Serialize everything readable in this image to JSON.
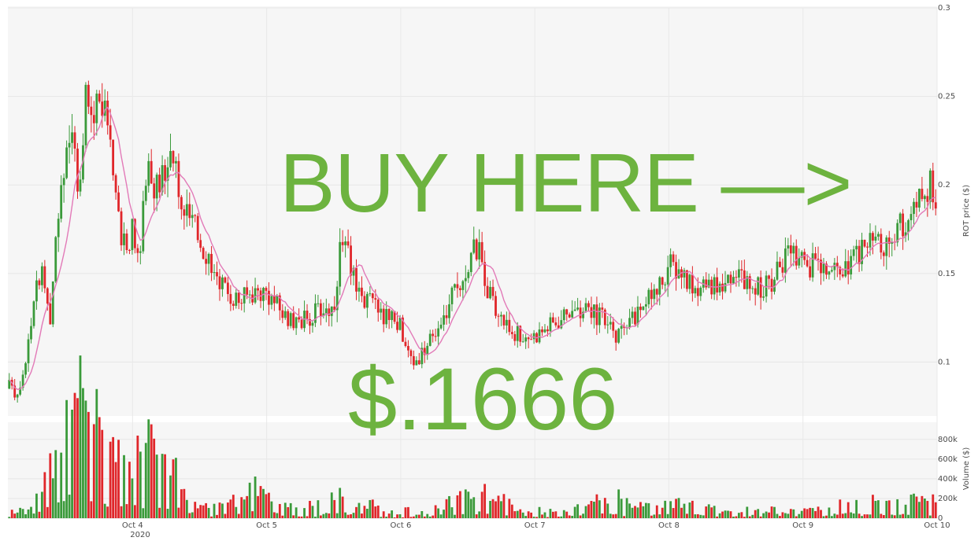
{
  "chart_data": [
    {
      "type": "candlestick",
      "ylabel": "ROT price ($)",
      "ylim": [
        0.07,
        0.3
      ],
      "y_ticks": [
        "0.1",
        "0.15",
        "0.2",
        "0.25",
        "0.3"
      ],
      "x_ticks": [
        "Oct 4",
        "Oct 5",
        "Oct 6",
        "Oct 7",
        "Oct 8",
        "Oct 9",
        "Oct 10"
      ],
      "x_year": "2020",
      "x_range": [
        3.07,
        10.0
      ],
      "grid": true,
      "colors": {
        "up": "#3a9a3a",
        "down": "#e0262a",
        "ma": "#e27ab8",
        "panel": "#f6f6f6"
      },
      "series": [
        {
          "close_path": [
            [
              3.07,
              0.085
            ],
            [
              3.1,
              0.09
            ],
            [
              3.13,
              0.08
            ],
            [
              3.18,
              0.095
            ],
            [
              3.22,
              0.11
            ],
            [
              3.28,
              0.14
            ],
            [
              3.32,
              0.15
            ],
            [
              3.38,
              0.12
            ],
            [
              3.43,
              0.17
            ],
            [
              3.5,
              0.22
            ],
            [
              3.55,
              0.23
            ],
            [
              3.6,
              0.2
            ],
            [
              3.65,
              0.25
            ],
            [
              3.7,
              0.24
            ],
            [
              3.75,
              0.26
            ],
            [
              3.8,
              0.235
            ],
            [
              3.85,
              0.215
            ],
            [
              3.9,
              0.18
            ],
            [
              3.95,
              0.16
            ],
            [
              4.0,
              0.175
            ],
            [
              4.05,
              0.155
            ],
            [
              4.1,
              0.21
            ],
            [
              4.15,
              0.195
            ],
            [
              4.2,
              0.205
            ],
            [
              4.25,
              0.2
            ],
            [
              4.3,
              0.215
            ],
            [
              4.35,
              0.195
            ],
            [
              4.4,
              0.185
            ],
            [
              4.5,
              0.17
            ],
            [
              4.6,
              0.155
            ],
            [
              4.7,
              0.14
            ],
            [
              4.8,
              0.135
            ],
            [
              4.9,
              0.14
            ],
            [
              5.0,
              0.14
            ],
            [
              5.1,
              0.13
            ],
            [
              5.2,
              0.12
            ],
            [
              5.3,
              0.125
            ],
            [
              5.4,
              0.13
            ],
            [
              5.5,
              0.13
            ],
            [
              5.55,
              0.165
            ],
            [
              5.6,
              0.16
            ],
            [
              5.7,
              0.14
            ],
            [
              5.8,
              0.13
            ],
            [
              5.9,
              0.125
            ],
            [
              6.0,
              0.12
            ],
            [
              6.05,
              0.105
            ],
            [
              6.1,
              0.1
            ],
            [
              6.2,
              0.11
            ],
            [
              6.3,
              0.12
            ],
            [
              6.4,
              0.14
            ],
            [
              6.5,
              0.155
            ],
            [
              6.55,
              0.165
            ],
            [
              6.6,
              0.16
            ],
            [
              6.65,
              0.14
            ],
            [
              6.7,
              0.13
            ],
            [
              6.8,
              0.12
            ],
            [
              6.9,
              0.115
            ],
            [
              7.0,
              0.115
            ],
            [
              7.1,
              0.12
            ],
            [
              7.2,
              0.125
            ],
            [
              7.3,
              0.13
            ],
            [
              7.4,
              0.13
            ],
            [
              7.5,
              0.125
            ],
            [
              7.6,
              0.115
            ],
            [
              7.7,
              0.12
            ],
            [
              7.8,
              0.13
            ],
            [
              7.9,
              0.14
            ],
            [
              8.0,
              0.155
            ],
            [
              8.1,
              0.15
            ],
            [
              8.2,
              0.14
            ],
            [
              8.3,
              0.14
            ],
            [
              8.4,
              0.145
            ],
            [
              8.5,
              0.15
            ],
            [
              8.6,
              0.145
            ],
            [
              8.7,
              0.14
            ],
            [
              8.8,
              0.15
            ],
            [
              8.9,
              0.16
            ],
            [
              9.0,
              0.155
            ],
            [
              9.1,
              0.155
            ],
            [
              9.2,
              0.15
            ],
            [
              9.3,
              0.15
            ],
            [
              9.4,
              0.16
            ],
            [
              9.5,
              0.17
            ],
            [
              9.6,
              0.165
            ],
            [
              9.7,
              0.175
            ],
            [
              9.8,
              0.18
            ],
            [
              9.9,
              0.195
            ],
            [
              9.95,
              0.2
            ],
            [
              10.0,
              0.19
            ]
          ]
        }
      ]
    },
    {
      "type": "bar",
      "ylabel": "Volume ($)",
      "ylim": [
        0,
        950000
      ],
      "y_ticks": [
        "0",
        "200k",
        "400k",
        "600k",
        "800k"
      ],
      "x_ticks": [
        "Oct 4",
        "Oct 5",
        "Oct 6",
        "Oct 7",
        "Oct 8",
        "Oct 9",
        "Oct 10"
      ],
      "peaks": [
        [
          3.55,
          900000
        ],
        [
          3.62,
          650000
        ],
        [
          3.7,
          600000
        ],
        [
          4.05,
          860000
        ],
        [
          4.25,
          500000
        ],
        [
          4.9,
          350000
        ],
        [
          5.55,
          280000
        ],
        [
          6.55,
          350000
        ],
        [
          7.55,
          250000
        ],
        [
          8.1,
          200000
        ],
        [
          9.4,
          220000
        ],
        [
          9.85,
          210000
        ]
      ]
    }
  ],
  "overlay": {
    "headline": "BUY HERE —>",
    "price": "$.1666",
    "color": "#6db33f"
  }
}
